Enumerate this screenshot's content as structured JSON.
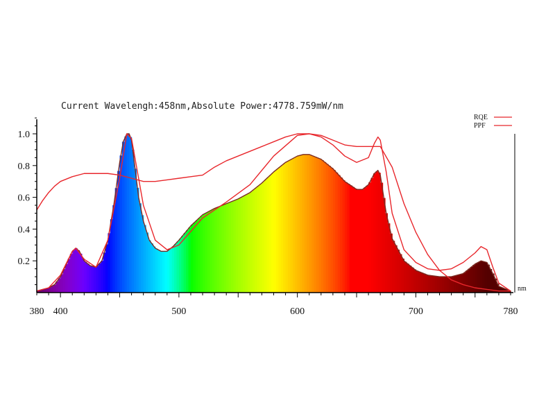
{
  "status": {
    "text": "Current Wavelengh:458nm,Absolute Power:4778.759mW/nm"
  },
  "colors": {
    "curve": "#e8262b",
    "axis": "#000000",
    "background": "#ffffff"
  },
  "chart_data": {
    "type": "area",
    "xunit": "nm",
    "xlim": [
      380,
      780
    ],
    "ylim": [
      0,
      1.1
    ],
    "x_ticks": [
      380,
      400,
      500,
      600,
      700,
      780
    ],
    "y_ticks": [
      0.2,
      0.4,
      0.6,
      0.8,
      1.0
    ],
    "x_tick_labels": [
      "380",
      "400",
      "500",
      "600",
      "700",
      "780"
    ],
    "y_tick_labels": [
      "0.2",
      "0.4",
      "0.6",
      "0.8",
      "1.0"
    ],
    "grid": false,
    "legend_position": "top-right",
    "fill": "wavelength-colored spectrum",
    "series": [
      {
        "name": "",
        "role": "relative spectral power",
        "x": [
          380,
          385,
          390,
          395,
          400,
          405,
          410,
          413,
          416,
          420,
          425,
          430,
          435,
          440,
          445,
          450,
          453,
          456,
          458,
          460,
          463,
          466,
          470,
          475,
          480,
          485,
          490,
          495,
          500,
          510,
          520,
          530,
          540,
          550,
          560,
          570,
          580,
          590,
          600,
          605,
          610,
          620,
          630,
          640,
          650,
          655,
          660,
          665,
          668,
          670,
          675,
          680,
          690,
          700,
          710,
          720,
          730,
          740,
          745,
          750,
          755,
          760,
          765,
          770,
          780
        ],
        "y": [
          0.01,
          0.02,
          0.03,
          0.05,
          0.1,
          0.18,
          0.26,
          0.28,
          0.26,
          0.2,
          0.17,
          0.16,
          0.2,
          0.33,
          0.55,
          0.82,
          0.95,
          1.0,
          1.0,
          0.96,
          0.78,
          0.6,
          0.45,
          0.33,
          0.28,
          0.26,
          0.26,
          0.29,
          0.33,
          0.42,
          0.49,
          0.53,
          0.56,
          0.59,
          0.63,
          0.69,
          0.76,
          0.82,
          0.86,
          0.87,
          0.87,
          0.84,
          0.78,
          0.7,
          0.65,
          0.65,
          0.68,
          0.75,
          0.77,
          0.74,
          0.5,
          0.34,
          0.2,
          0.14,
          0.11,
          0.1,
          0.1,
          0.12,
          0.15,
          0.18,
          0.2,
          0.19,
          0.12,
          0.04,
          0.01
        ]
      },
      {
        "name": "RQE",
        "x": [
          380,
          385,
          390,
          395,
          400,
          410,
          420,
          430,
          440,
          450,
          460,
          470,
          480,
          490,
          500,
          510,
          520,
          530,
          540,
          550,
          560,
          570,
          580,
          590,
          600,
          610,
          620,
          630,
          640,
          650,
          660,
          670,
          680,
          690,
          700,
          710,
          720,
          730,
          740,
          750,
          760,
          770,
          780
        ],
        "y": [
          0.52,
          0.58,
          0.63,
          0.67,
          0.7,
          0.73,
          0.75,
          0.75,
          0.75,
          0.74,
          0.72,
          0.7,
          0.7,
          0.71,
          0.72,
          0.73,
          0.74,
          0.79,
          0.83,
          0.86,
          0.89,
          0.92,
          0.95,
          0.98,
          1.0,
          1.0,
          0.99,
          0.96,
          0.93,
          0.92,
          0.92,
          0.92,
          0.79,
          0.56,
          0.38,
          0.24,
          0.14,
          0.08,
          0.05,
          0.03,
          0.02,
          0.01,
          0.01
        ]
      },
      {
        "name": "PPF",
        "x": [
          380,
          390,
          400,
          410,
          413,
          420,
          430,
          440,
          450,
          456,
          460,
          465,
          470,
          480,
          490,
          500,
          520,
          540,
          560,
          580,
          600,
          610,
          620,
          630,
          640,
          650,
          660,
          665,
          668,
          670,
          675,
          680,
          690,
          700,
          710,
          720,
          730,
          740,
          750,
          755,
          760,
          765,
          770,
          780
        ],
        "y": [
          0.01,
          0.03,
          0.11,
          0.26,
          0.28,
          0.21,
          0.16,
          0.33,
          0.72,
          1.0,
          0.97,
          0.76,
          0.55,
          0.33,
          0.27,
          0.3,
          0.47,
          0.57,
          0.68,
          0.86,
          0.99,
          1.0,
          0.98,
          0.93,
          0.86,
          0.82,
          0.85,
          0.94,
          0.98,
          0.96,
          0.76,
          0.5,
          0.27,
          0.19,
          0.15,
          0.14,
          0.15,
          0.19,
          0.25,
          0.29,
          0.27,
          0.16,
          0.06,
          0.01
        ]
      }
    ]
  }
}
